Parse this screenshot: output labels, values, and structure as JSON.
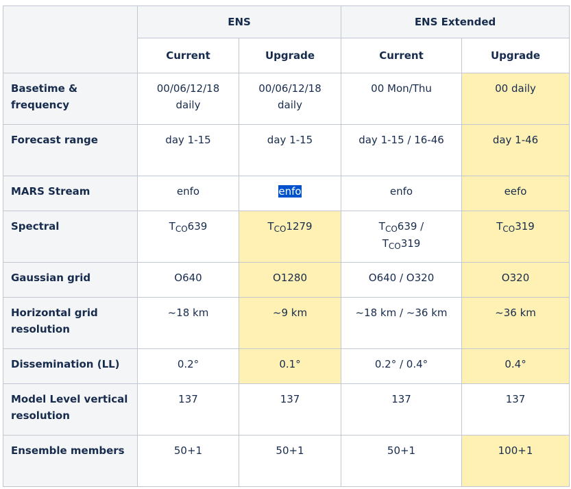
{
  "header": {
    "group_ens": "ENS",
    "group_ens_extended": "ENS Extended",
    "col_current": "Current",
    "col_upgrade": "Upgrade"
  },
  "rows": [
    {
      "label": "Basetime & frequency",
      "values": [
        "00/06/12/18 daily",
        "00/06/12/18 daily",
        "00 Mon/Thu",
        "00 daily"
      ]
    },
    {
      "label": "Forecast range",
      "values": [
        "day 1-15",
        "day 1-15",
        "day 1-15 / 16-46",
        "day 1-46"
      ]
    },
    {
      "label": "MARS Stream",
      "values": [
        "enfo",
        "enfo",
        "enfo",
        "eefo"
      ]
    },
    {
      "label": "Spectral",
      "values": [
        "TCO639",
        "TCO1279",
        "TCO639 / TCO319",
        "TCO319"
      ]
    },
    {
      "label": "Gaussian grid",
      "values": [
        "O640",
        "O1280",
        "O640 / O320",
        "O320"
      ]
    },
    {
      "label": "Horizontal grid resolution",
      "values": [
        "~18 km",
        "~9 km",
        "~18 km / ~36 km",
        "~36 km"
      ]
    },
    {
      "label": "Dissemination (LL)",
      "values": [
        "0.2°",
        "0.1°",
        "0.2° / 0.4°",
        "0.4°"
      ]
    },
    {
      "label": "Model Level vertical resolution",
      "values": [
        "137",
        "137",
        "137",
        "137"
      ]
    },
    {
      "label": "Ensemble members",
      "values": [
        "50+1",
        "50+1",
        "50+1",
        "100+1"
      ]
    }
  ],
  "spectral_parts": {
    "prefix": "T",
    "sub": "CO",
    "c1_num": "639",
    "c2_num": "1279",
    "c3_num_a": "639 /",
    "c3_num_b": "319",
    "c4_num": "319"
  },
  "colors": {
    "header_bg": "#f4f5f7",
    "highlight_bg": "#fff0b3",
    "border": "#c1c7d0",
    "text": "#172b4d",
    "selection_bg": "#0052cc"
  }
}
